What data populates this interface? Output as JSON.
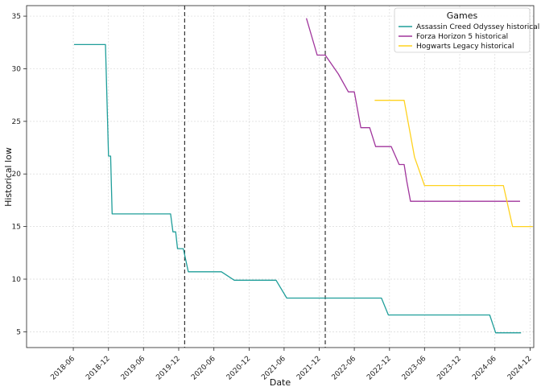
{
  "chart_data": {
    "type": "line",
    "title": "",
    "xlabel": "Date",
    "ylabel": "Historical low",
    "grid": true,
    "legend_placement": "top-right",
    "legend_title": "Games",
    "xlim": [
      "2017-10-01",
      "2024-12-20"
    ],
    "ylim": [
      3.5,
      36
    ],
    "x_ticks": [
      "2018-06",
      "2018-12",
      "2019-06",
      "2019-12",
      "2020-06",
      "2020-12",
      "2021-06",
      "2021-12",
      "2022-06",
      "2022-12",
      "2023-06",
      "2023-12",
      "2024-06",
      "2024-12"
    ],
    "y_ticks": [
      5,
      10,
      15,
      20,
      25,
      30,
      35
    ],
    "vertical_lines": [
      "2020-01-01",
      "2022-01-01"
    ],
    "series": [
      {
        "name": "Assassin Creed Odyssey historical",
        "color": "#1f9e9a",
        "points": [
          [
            "2018-06-05",
            32.3
          ],
          [
            "2018-11-15",
            32.3
          ],
          [
            "2018-12-01",
            21.7
          ],
          [
            "2018-12-12",
            21.7
          ],
          [
            "2018-12-20",
            16.2
          ],
          [
            "2019-10-20",
            16.2
          ],
          [
            "2019-11-01",
            14.5
          ],
          [
            "2019-11-15",
            14.5
          ],
          [
            "2019-11-25",
            12.9
          ],
          [
            "2019-12-25",
            12.9
          ],
          [
            "2020-01-20",
            10.7
          ],
          [
            "2020-07-10",
            10.7
          ],
          [
            "2020-09-15",
            9.9
          ],
          [
            "2021-04-20",
            9.9
          ],
          [
            "2021-06-15",
            8.2
          ],
          [
            "2022-10-20",
            8.2
          ],
          [
            "2022-11-25",
            6.6
          ],
          [
            "2024-05-05",
            6.6
          ],
          [
            "2024-06-05",
            4.9
          ],
          [
            "2024-10-15",
            4.9
          ]
        ]
      },
      {
        "name": "Forza Horizon 5 historical",
        "color": "#a0359c",
        "points": [
          [
            "2021-09-25",
            34.8
          ],
          [
            "2021-11-20",
            31.3
          ],
          [
            "2022-01-01",
            31.3
          ],
          [
            "2022-03-10",
            29.5
          ],
          [
            "2022-05-01",
            27.8
          ],
          [
            "2022-06-01",
            27.8
          ],
          [
            "2022-07-05",
            24.4
          ],
          [
            "2022-08-20",
            24.4
          ],
          [
            "2022-09-20",
            22.6
          ],
          [
            "2022-12-10",
            22.6
          ],
          [
            "2023-01-20",
            20.9
          ],
          [
            "2023-02-15",
            20.9
          ],
          [
            "2023-03-01",
            19.3
          ],
          [
            "2023-03-20",
            17.4
          ],
          [
            "2024-10-10",
            17.4
          ]
        ]
      },
      {
        "name": "Hogwarts Legacy historical",
        "color": "#ffd21f",
        "points": [
          [
            "2022-09-15",
            27.0
          ],
          [
            "2023-02-15",
            27.0
          ],
          [
            "2023-04-10",
            21.6
          ],
          [
            "2023-06-01",
            18.9
          ],
          [
            "2024-07-15",
            18.9
          ],
          [
            "2024-09-01",
            15.0
          ],
          [
            "2024-12-15",
            15.0
          ]
        ]
      }
    ]
  }
}
